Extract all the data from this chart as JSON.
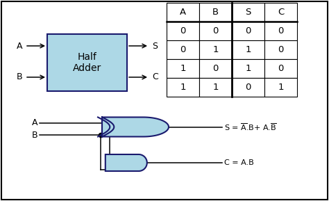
{
  "background_color": "#ffffff",
  "border_color": "#000000",
  "box_fill": "#add8e6",
  "box_edge": "#1a1a6e",
  "gate_fill": "#add8e6",
  "gate_edge": "#1a1a6e",
  "table_header": [
    "A",
    "B",
    "S",
    "C"
  ],
  "table_data": [
    [
      "0",
      "0",
      "0",
      "0"
    ],
    [
      "0",
      "1",
      "1",
      "0"
    ],
    [
      "1",
      "0",
      "1",
      "0"
    ],
    [
      "1",
      "1",
      "0",
      "1"
    ]
  ],
  "title_box": "Half\nAdder",
  "label_A": "A",
  "label_B": "B",
  "label_S": "S",
  "label_C": "C"
}
